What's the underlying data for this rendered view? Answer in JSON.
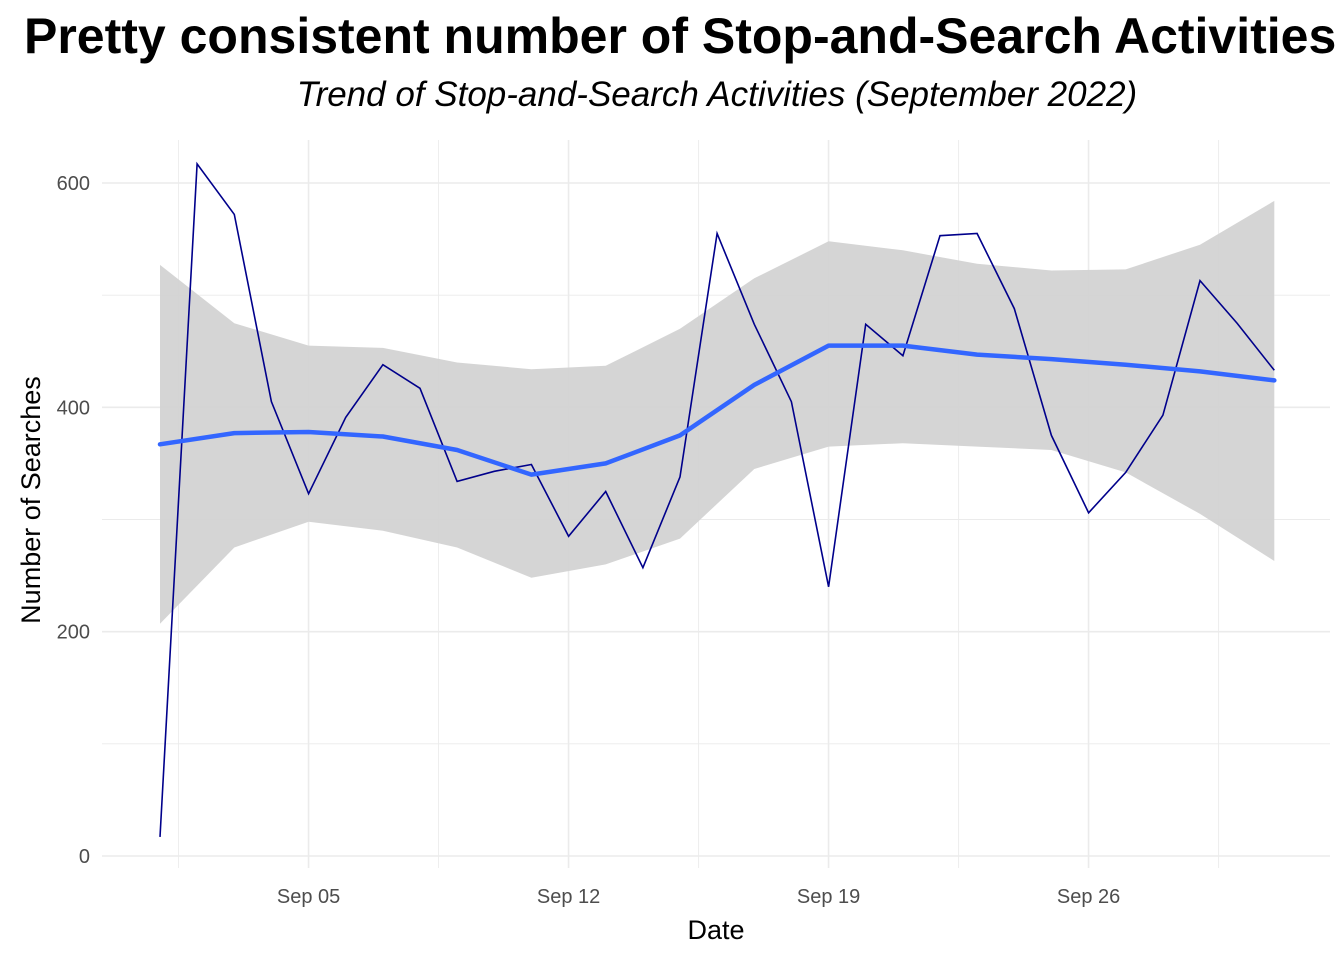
{
  "chart_data": {
    "type": "line",
    "title": "Pretty consistent number of Stop-and-Search Activities",
    "subtitle": "Trend of Stop-and-Search Activities (September 2022)",
    "xlabel": "Date",
    "ylabel": "Number of Searches",
    "x_tick_labels": [
      "Sep 05",
      "Sep 12",
      "Sep 19",
      "Sep 26"
    ],
    "y_tick_labels": [
      "0",
      "200",
      "400",
      "600"
    ],
    "ylim": [
      0,
      620
    ],
    "xlim": [
      "2022-08-31",
      "2022-10-02"
    ],
    "grid": true,
    "series": [
      {
        "kind": "line",
        "color": "#00008B",
        "x": [
          "2022-09-01",
          "2022-09-02",
          "2022-09-03",
          "2022-09-04",
          "2022-09-05",
          "2022-09-06",
          "2022-09-07",
          "2022-09-08",
          "2022-09-09",
          "2022-09-10",
          "2022-09-11",
          "2022-09-12",
          "2022-09-13",
          "2022-09-14",
          "2022-09-15",
          "2022-09-16",
          "2022-09-17",
          "2022-09-18",
          "2022-09-19",
          "2022-09-20",
          "2022-09-21",
          "2022-09-22",
          "2022-09-23",
          "2022-09-24",
          "2022-09-25",
          "2022-09-26",
          "2022-09-27",
          "2022-09-28",
          "2022-09-29",
          "2022-09-30",
          "2022-10-01"
        ],
        "values": [
          17,
          617,
          572,
          405,
          323,
          391,
          438,
          417,
          334,
          343,
          349,
          285,
          325,
          257,
          338,
          555,
          474,
          405,
          240,
          474,
          446,
          553,
          555,
          488,
          375,
          306,
          342,
          393,
          513,
          475,
          433
        ]
      },
      {
        "kind": "smooth",
        "color": "#3366FF",
        "x": [
          "2022-09-01",
          "2022-09-03",
          "2022-09-05",
          "2022-09-07",
          "2022-09-09",
          "2022-09-11",
          "2022-09-13",
          "2022-09-15",
          "2022-09-17",
          "2022-09-19",
          "2022-09-21",
          "2022-09-23",
          "2022-09-25",
          "2022-09-27",
          "2022-09-29",
          "2022-10-01"
        ],
        "values": [
          367,
          377,
          378,
          374,
          362,
          340,
          350,
          375,
          420,
          455,
          455,
          447,
          443,
          438,
          432,
          424
        ],
        "ci_upper": [
          527,
          475,
          455,
          453,
          440,
          434,
          437,
          470,
          515,
          548,
          540,
          528,
          522,
          523,
          545,
          584
        ],
        "ci_lower": [
          207,
          275,
          298,
          290,
          275,
          248,
          260,
          283,
          345,
          365,
          368,
          365,
          362,
          342,
          305,
          263
        ],
        "band_color": "#D3D3D3"
      }
    ]
  }
}
